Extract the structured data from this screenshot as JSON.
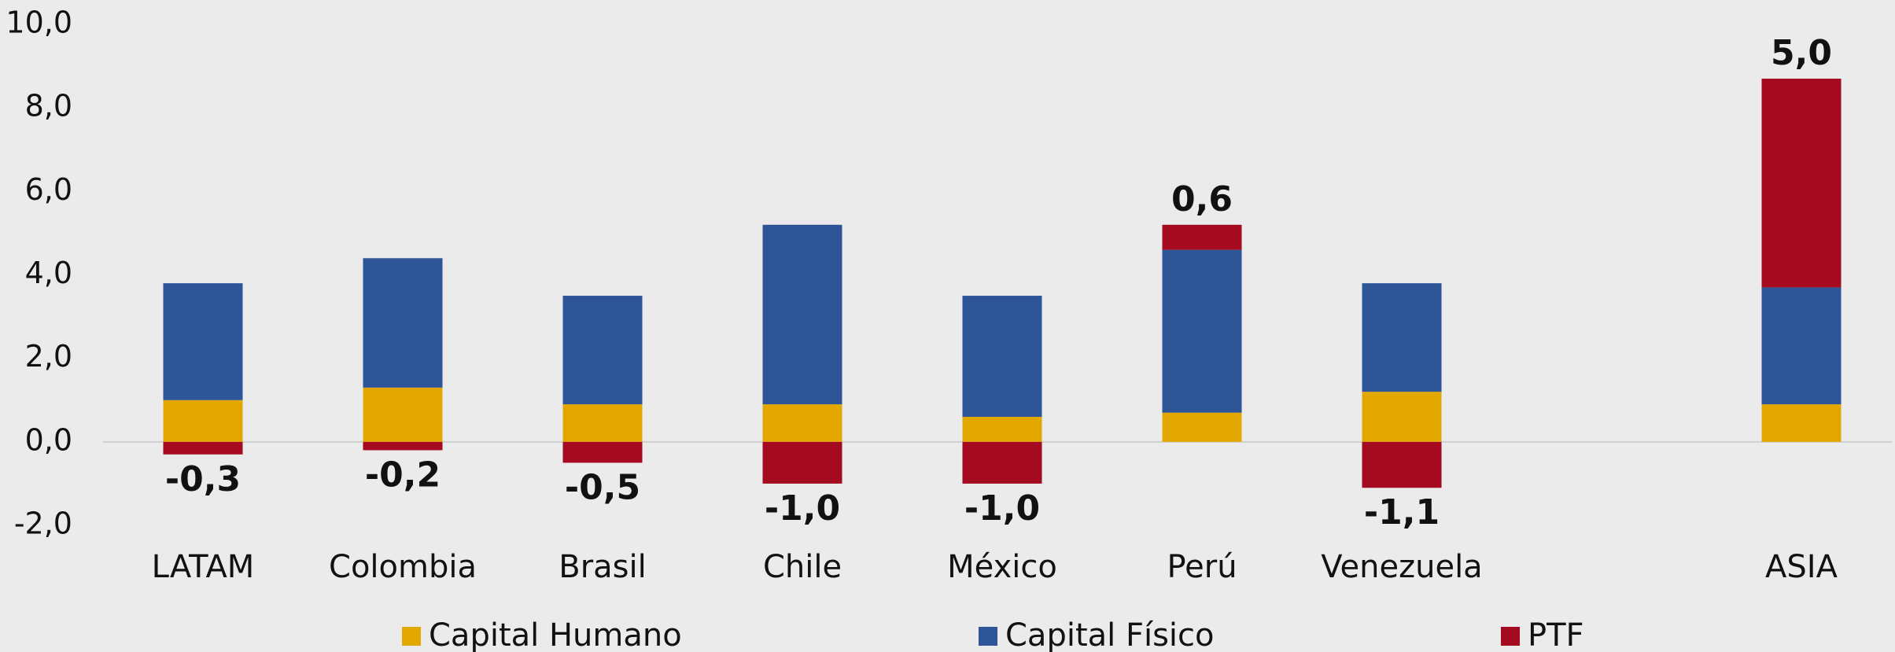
{
  "chart_data": {
    "type": "stacked-bar",
    "categories": [
      "LATAM",
      "Colombia",
      "Brasil",
      "Chile",
      "México",
      "Perú",
      "Venezuela",
      null,
      "ASIA"
    ],
    "series": [
      {
        "name": "Capital Humano",
        "color": "#e3a800",
        "values": [
          1.0,
          1.3,
          0.9,
          0.9,
          0.6,
          0.7,
          1.2,
          null,
          0.9
        ]
      },
      {
        "name": "Capital Físico",
        "color": "#2e5597",
        "values": [
          2.8,
          3.1,
          2.6,
          4.3,
          2.9,
          3.9,
          2.6,
          null,
          2.8
        ]
      },
      {
        "name": "PTF",
        "color": "#a50b20",
        "values": [
          -0.3,
          -0.2,
          -0.5,
          -1.0,
          -1.0,
          0.6,
          -1.1,
          null,
          5.0
        ],
        "value_labels": [
          "-0,3",
          "-0,2",
          "-0,5",
          "-1,0",
          "-1,0",
          "0,6",
          "-1,1",
          null,
          "5,0"
        ]
      }
    ],
    "ylim": [
      -2,
      10
    ],
    "yticks": [
      {
        "value": -2,
        "label": "-2,0"
      },
      {
        "value": 0,
        "label": "0,0"
      },
      {
        "value": 2,
        "label": "2,0"
      },
      {
        "value": 4,
        "label": "4,0"
      },
      {
        "value": 6,
        "label": "6,0"
      },
      {
        "value": 8,
        "label": "8,0"
      },
      {
        "value": 10,
        "label": "10,0"
      }
    ],
    "legend": "bottom"
  }
}
